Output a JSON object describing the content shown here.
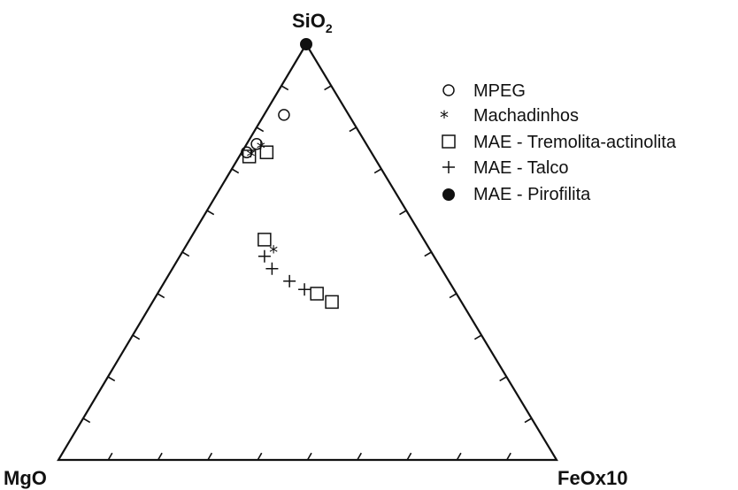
{
  "chart_data": {
    "type": "ternary",
    "vertices": {
      "top": "SiO",
      "top_subscript": "2",
      "left": "MgO",
      "right": "FeOx10"
    },
    "tick_divisions": 10,
    "legend": [
      {
        "label": "MPEG",
        "marker": "circle"
      },
      {
        "label": "Machadinhos",
        "marker": "asterisk"
      },
      {
        "label": "MAE - Tremolita-actinolita",
        "marker": "square"
      },
      {
        "label": "MAE - Talco",
        "marker": "plus"
      },
      {
        "label": "MAE - Pirofilita",
        "marker": "filled-circle"
      }
    ],
    "series": [
      {
        "name": "MPEG",
        "marker": "circle",
        "points": [
          {
            "SiO2": 0.83,
            "MgO": 0.13,
            "FeOx10": 0.04
          },
          {
            "SiO2": 0.76,
            "MgO": 0.22,
            "FeOx10": 0.02
          },
          {
            "SiO2": 0.74,
            "MgO": 0.25,
            "FeOx10": 0.01
          }
        ]
      },
      {
        "name": "Machadinhos",
        "marker": "asterisk",
        "points": [
          {
            "SiO2": 0.76,
            "MgO": 0.21,
            "FeOx10": 0.03
          },
          {
            "SiO2": 0.74,
            "MgO": 0.24,
            "FeOx10": 0.02
          },
          {
            "SiO2": 0.51,
            "MgO": 0.31,
            "FeOx10": 0.18
          }
        ]
      },
      {
        "name": "MAE - Tremolita-actinolita",
        "marker": "square",
        "points": [
          {
            "SiO2": 0.74,
            "MgO": 0.21,
            "FeOx10": 0.05
          },
          {
            "SiO2": 0.73,
            "MgO": 0.25,
            "FeOx10": 0.02
          },
          {
            "SiO2": 0.53,
            "MgO": 0.32,
            "FeOx10": 0.15
          },
          {
            "SiO2": 0.4,
            "MgO": 0.28,
            "FeOx10": 0.32
          },
          {
            "SiO2": 0.38,
            "MgO": 0.26,
            "FeOx10": 0.36
          }
        ]
      },
      {
        "name": "MAE - Talco",
        "marker": "plus",
        "points": [
          {
            "SiO2": 0.49,
            "MgO": 0.34,
            "FeOx10": 0.17
          },
          {
            "SiO2": 0.46,
            "MgO": 0.34,
            "FeOx10": 0.2
          },
          {
            "SiO2": 0.43,
            "MgO": 0.32,
            "FeOx10": 0.25
          },
          {
            "SiO2": 0.41,
            "MgO": 0.3,
            "FeOx10": 0.29
          }
        ]
      },
      {
        "name": "MAE - Pirofilita",
        "marker": "filled-circle",
        "points": [
          {
            "SiO2": 1.0,
            "MgO": 0.0,
            "FeOx10": 0.0
          }
        ]
      }
    ]
  }
}
